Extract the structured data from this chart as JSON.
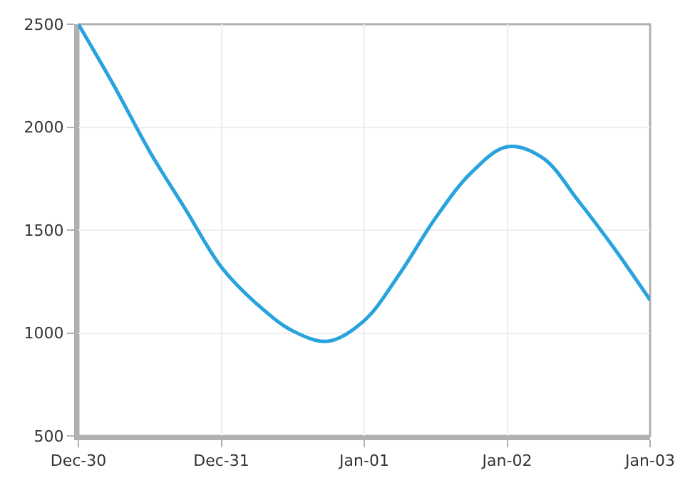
{
  "chart_data": {
    "type": "line",
    "categories": [
      "Dec-30",
      null,
      null,
      null,
      "Dec-31",
      null,
      null,
      null,
      "Jan-01",
      null,
      null,
      null,
      "Jan-02",
      null,
      null,
      null,
      "Jan-03"
    ],
    "series": [
      {
        "color": "#29a3dd",
        "values": [
          2500,
          2200,
          1880,
          1600,
          1320,
          1140,
          1010,
          960,
          1060,
          1290,
          1560,
          1780,
          1905,
          1850,
          1640,
          1410,
          1160
        ]
      }
    ],
    "ylim": [
      500,
      2500
    ],
    "yticks": [
      500,
      1000,
      1500,
      2000,
      2500
    ],
    "grid": true,
    "marker": "none",
    "line_style": "solid"
  }
}
